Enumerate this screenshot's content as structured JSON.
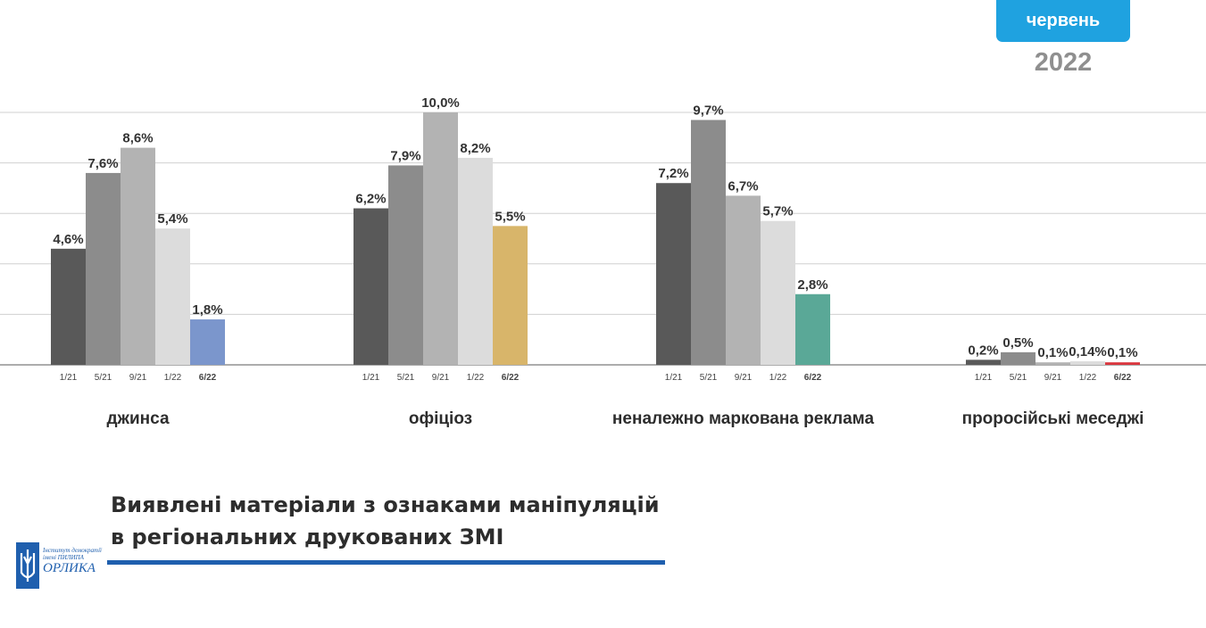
{
  "badge": {
    "month": "червень",
    "year": "2022"
  },
  "title": {
    "line1": "Виявлені матеріали з ознаками маніпуляцій",
    "line2": "в регіональних друкованих ЗМІ"
  },
  "logo": {
    "line1": "Інститут демократії",
    "line2": "імені ПИЛИПА",
    "line3": "ОРЛИКА"
  },
  "colors": {
    "accent": "#1fa2e0",
    "brand": "#1f5fae",
    "bar_1_21": "#595959",
    "bar_5_21": "#8c8c8c",
    "bar_9_21": "#b3b3b3",
    "bar_1_22": "#dcdcdc"
  },
  "chart_data": {
    "type": "bar",
    "title": "",
    "xlabel": "",
    "ylabel": "",
    "ylim": [
      0,
      10
    ],
    "grid": true,
    "legend": "none",
    "periods": [
      "1/21",
      "5/21",
      "9/21",
      "1/22",
      "6/22"
    ],
    "highlight_period": "6/22",
    "groups": [
      {
        "name": "джинса",
        "values": [
          4.6,
          7.6,
          8.6,
          5.4,
          1.8
        ],
        "labels": [
          "4,6%",
          "7,6%",
          "8,6%",
          "5,4%",
          "1,8%"
        ],
        "highlight_color": "#7b96cc"
      },
      {
        "name": "офіціоз",
        "values": [
          6.2,
          7.9,
          10.0,
          8.2,
          5.5
        ],
        "labels": [
          "6,2%",
          "7,9%",
          "10,0%",
          "8,2%",
          "5,5%"
        ],
        "highlight_color": "#d8b56a"
      },
      {
        "name": "неналежно маркована реклама",
        "values": [
          7.2,
          9.7,
          6.7,
          5.7,
          2.8
        ],
        "labels": [
          "7,2%",
          "9,7%",
          "6,7%",
          "5,7%",
          "2,8%"
        ],
        "highlight_color": "#5aa897"
      },
      {
        "name": "проросійські меседжі",
        "values": [
          0.2,
          0.5,
          0.1,
          0.14,
          0.1
        ],
        "labels": [
          "0,2%",
          "0,5%",
          "0,1%",
          "0,14%",
          "0,1%"
        ],
        "highlight_color": "#d9363e"
      }
    ]
  }
}
